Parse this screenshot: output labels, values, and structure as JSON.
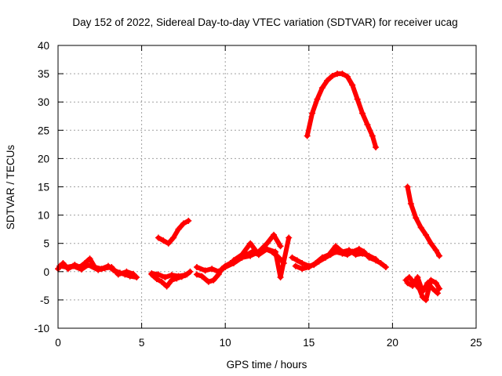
{
  "chart_data": {
    "type": "scatter",
    "title": "Day 152 of 2022, Sidereal Day-to-day VTEC variation (SDTVAR) for receiver ucag",
    "xlabel": "GPS time / hours",
    "ylabel": "SDTVAR / TECUs",
    "xlim": [
      0,
      25
    ],
    "ylim": [
      -10,
      40
    ],
    "x_ticks": [
      0,
      5,
      10,
      15,
      20,
      25
    ],
    "y_ticks": [
      -10,
      -5,
      0,
      5,
      10,
      15,
      20,
      25,
      30,
      35,
      40
    ],
    "grid": true,
    "series": [
      {
        "name": "SDTVAR",
        "color": "#ff0000",
        "marker": "+",
        "segments": [
          {
            "x": [
              0.0,
              0.3,
              0.6,
              1.0,
              1.3,
              1.6,
              1.9,
              2.2,
              2.6,
              3.0,
              3.3,
              3.7,
              4.0,
              4.3,
              4.7
            ],
            "y": [
              0.5,
              1.5,
              0.5,
              1.2,
              0.8,
              1.5,
              2.3,
              0.8,
              0.5,
              1.0,
              0.3,
              -0.2,
              -0.5,
              -0.8,
              -1.0
            ]
          },
          {
            "x": [
              0.1,
              0.5,
              0.9,
              1.4,
              1.8,
              2.4,
              2.8,
              3.2,
              3.6,
              4.1,
              4.5
            ],
            "y": [
              1.0,
              0.8,
              1.0,
              0.4,
              1.2,
              0.3,
              0.6,
              0.8,
              -0.5,
              0.0,
              -0.4
            ]
          },
          {
            "x": [
              5.6,
              5.9,
              6.2,
              6.5,
              6.8,
              7.1,
              7.4,
              7.7,
              7.9
            ],
            "y": [
              -0.5,
              -1.3,
              -1.8,
              -2.6,
              -1.5,
              -1.2,
              -0.9,
              -0.5,
              0.0
            ]
          },
          {
            "x": [
              5.6,
              6.0,
              6.4,
              6.8,
              7.2,
              7.6
            ],
            "y": [
              -0.3,
              -0.5,
              -1.0,
              -0.6,
              -0.8,
              -0.6
            ]
          },
          {
            "x": [
              6.0,
              6.3,
              6.6,
              6.9,
              7.2,
              7.5,
              7.8
            ],
            "y": [
              6.0,
              5.5,
              5.0,
              6.0,
              7.5,
              8.5,
              9.0
            ]
          },
          {
            "x": [
              8.3,
              8.6,
              9.0,
              9.3,
              9.6,
              9.8,
              10.0,
              10.3,
              10.7,
              11.0,
              11.3,
              11.6,
              12.0,
              12.4,
              12.8,
              13.2,
              13.5
            ],
            "y": [
              -0.5,
              -0.8,
              -1.8,
              -1.5,
              -0.5,
              0.5,
              1.0,
              1.5,
              2.0,
              2.5,
              3.0,
              3.5,
              3.0,
              4.0,
              3.5,
              2.5,
              1.5
            ]
          },
          {
            "x": [
              8.3,
              8.8,
              9.2,
              9.6,
              10.0,
              10.5,
              11.0,
              11.5,
              12.0,
              12.5,
              12.9,
              13.3
            ],
            "y": [
              0.8,
              0.2,
              0.5,
              0.0,
              0.8,
              1.5,
              2.5,
              2.8,
              3.5,
              5.0,
              6.5,
              4.5
            ]
          },
          {
            "x": [
              10.5,
              11.0,
              11.5,
              12.0,
              12.5,
              13.0,
              13.3,
              13.8
            ],
            "y": [
              2.0,
              3.0,
              5.0,
              3.0,
              4.0,
              3.5,
              -1.0,
              6.0
            ]
          },
          {
            "x": [
              14.0,
              14.3,
              14.6,
              15.0,
              15.3,
              15.6,
              16.0,
              16.3,
              16.6,
              17.0,
              17.3,
              17.6,
              18.0,
              18.3,
              18.6,
              19.0,
              19.3,
              19.6
            ],
            "y": [
              2.5,
              2.0,
              1.5,
              1.0,
              1.2,
              1.8,
              2.5,
              3.0,
              3.5,
              3.2,
              3.0,
              3.5,
              4.0,
              3.5,
              2.5,
              2.0,
              1.5,
              0.8
            ]
          },
          {
            "x": [
              14.2,
              14.6,
              15.0,
              15.4,
              15.8,
              16.2,
              16.6,
              17.0,
              17.4,
              17.8,
              18.2,
              18.6,
              19.0
            ],
            "y": [
              1.0,
              0.5,
              0.8,
              1.5,
              2.5,
              3.0,
              4.5,
              3.5,
              3.8,
              3.0,
              3.2,
              2.8,
              2.2
            ]
          },
          {
            "x": [
              14.9,
              15.2,
              15.5,
              15.8,
              16.1,
              16.4,
              16.7,
              17.0,
              17.3,
              17.6,
              17.9,
              18.2,
              18.5,
              18.8,
              19.0
            ],
            "y": [
              24.0,
              28.0,
              30.5,
              32.5,
              33.8,
              34.6,
              35.0,
              35.0,
              34.5,
              33.0,
              30.5,
              28.0,
              26.0,
              24.0,
              22.0
            ]
          },
          {
            "x": [
              20.9,
              21.1,
              21.4,
              21.7,
              22.0,
              22.3,
              22.6,
              22.8
            ],
            "y": [
              15.0,
              12.0,
              9.5,
              7.8,
              6.5,
              5.0,
              3.8,
              2.8
            ]
          },
          {
            "x": [
              20.8,
              21.0,
              21.3,
              21.6,
              21.8,
              22.0,
              22.3,
              22.6,
              22.8
            ],
            "y": [
              -1.5,
              -1.0,
              -2.0,
              -3.0,
              -4.5,
              -5.0,
              -1.5,
              -2.0,
              -3.0
            ]
          },
          {
            "x": [
              20.9,
              21.2,
              21.5,
              21.8,
              22.1,
              22.4,
              22.7
            ],
            "y": [
              -2.0,
              -2.5,
              -1.0,
              -3.5,
              -2.0,
              -3.0,
              -3.8
            ]
          }
        ]
      }
    ]
  }
}
